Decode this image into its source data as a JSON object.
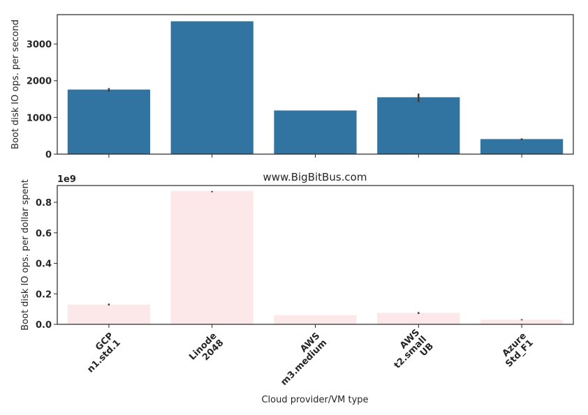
{
  "title": "www.BigBitBus.com",
  "xlabel": "Cloud provider/VM type",
  "colors": {
    "top_bar": "#3274a1",
    "bottom_bar": "#fce8e8",
    "error_bar": "#3f3f3f",
    "axis": "#262626"
  },
  "chart_data": [
    {
      "type": "bar",
      "categories": [
        "GCP\nn1.std.1",
        "Linode\n2048",
        "AWS\nm3.medium",
        "AWS\nt2.small\nUB",
        "Azure\nStd_F1"
      ],
      "values": [
        1760,
        3620,
        1190,
        1550,
        410
      ],
      "error_low": [
        1700,
        null,
        null,
        1420,
        380
      ],
      "error_high": [
        1800,
        null,
        null,
        1650,
        430
      ],
      "ylabel": "Boot disk IO ops. per second",
      "ylim": [
        0,
        3800
      ],
      "yticks": [
        0,
        1000,
        2000,
        3000
      ],
      "xtick_labels_shown": false
    },
    {
      "type": "bar",
      "title": "www.BigBitBus.com",
      "categories": [
        "GCP\nn1.std.1",
        "Linode\n2048",
        "AWS\nm3.medium",
        "AWS\nt2.small\nUB",
        "Azure\nStd_F1"
      ],
      "values": [
        0.13,
        0.875,
        0.06,
        0.075,
        0.03
      ],
      "error_low": [
        0.124,
        0.866,
        null,
        0.068,
        0.026
      ],
      "error_high": [
        0.136,
        0.874,
        null,
        0.08,
        0.034
      ],
      "ylabel": "Boot disk IO ops. per dollar spent",
      "xlabel": "Cloud provider/VM type",
      "offset_label": "1e9",
      "ylim": [
        0,
        0.91
      ],
      "yticks": [
        0.0,
        0.2,
        0.4,
        0.6,
        0.8
      ],
      "ytick_labels": [
        "0.0",
        "0.2",
        "0.4",
        "0.6",
        "0.8"
      ]
    }
  ]
}
